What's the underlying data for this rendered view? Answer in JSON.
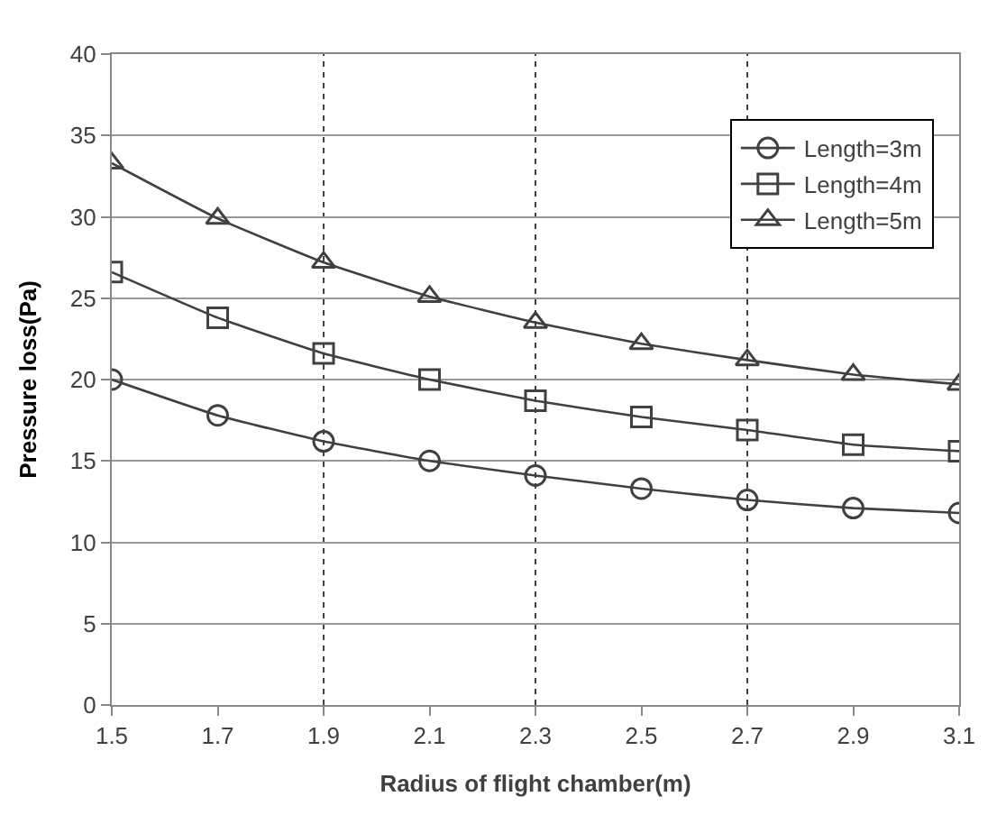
{
  "chart_data": {
    "type": "line",
    "xlabel": "Radius of flight chamber(m)",
    "ylabel": "Pressure loss(Pa)",
    "x": [
      1.5,
      1.7,
      1.9,
      2.1,
      2.3,
      2.5,
      2.7,
      2.9,
      3.1
    ],
    "series": [
      {
        "name": "Length=3m",
        "color": "#404040",
        "marker": "circle",
        "values": [
          20.0,
          17.8,
          16.2,
          15.0,
          14.1,
          13.3,
          12.6,
          12.1,
          11.8
        ]
      },
      {
        "name": "Length=4m",
        "color": "#404040",
        "marker": "square",
        "values": [
          26.6,
          23.8,
          21.6,
          20.0,
          18.7,
          17.7,
          16.9,
          16.0,
          15.6
        ]
      },
      {
        "name": "Length=5m",
        "color": "#404040",
        "marker": "triangle",
        "values": [
          33.3,
          29.9,
          27.2,
          25.1,
          23.5,
          22.2,
          21.2,
          20.3,
          19.7
        ]
      }
    ],
    "xlim": [
      1.5,
      3.1
    ],
    "xticks": [
      1.5,
      1.7,
      1.9,
      2.1,
      2.3,
      2.5,
      2.7,
      2.9,
      3.1
    ],
    "ylim": [
      0,
      40
    ],
    "yticks": [
      0,
      5,
      10,
      15,
      20,
      25,
      30,
      35,
      40
    ],
    "grid": "y",
    "legend": "top right",
    "line_style": "solid",
    "ref_lines": [
      {
        "axis": "x",
        "value": 1.9,
        "color": "#404040",
        "line_style": "dotted"
      },
      {
        "axis": "x",
        "value": 2.3,
        "color": "#404040",
        "line_style": "dotted"
      },
      {
        "axis": "x",
        "value": 2.7,
        "color": "#404040",
        "line_style": "dotted"
      }
    ]
  }
}
